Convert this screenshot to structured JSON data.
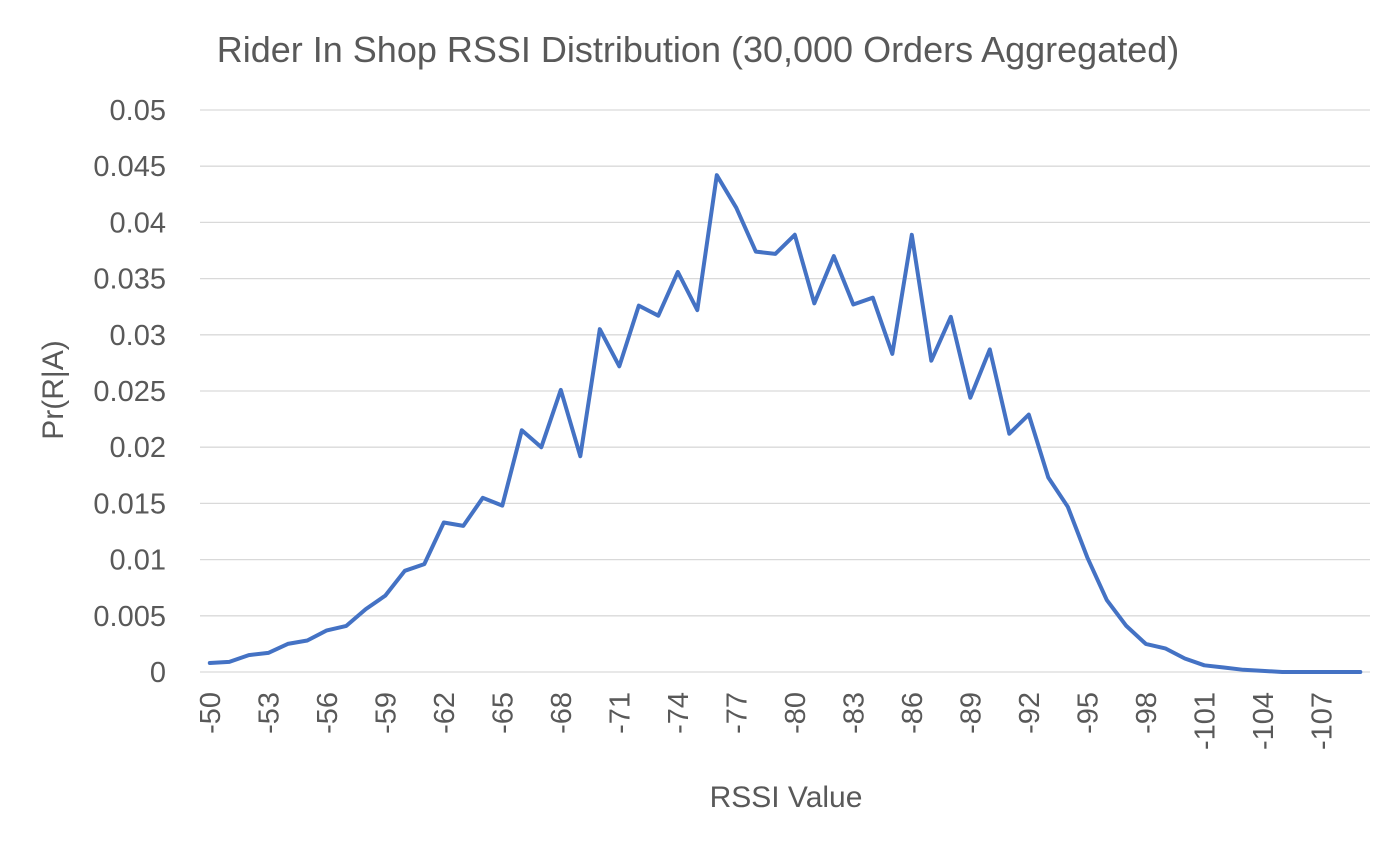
{
  "chart_data": {
    "type": "line",
    "title": "Rider In Shop RSSI Distribution (30,000 Orders Aggregated)",
    "xlabel": "RSSI Value",
    "ylabel": "Pr(R|A)",
    "ylim": [
      0,
      0.05
    ],
    "y_ticks": [
      "0",
      "0.005",
      "0.01",
      "0.015",
      "0.02",
      "0.025",
      "0.03",
      "0.035",
      "0.04",
      "0.045",
      "0.05"
    ],
    "x_tick_labels": [
      "-50",
      "-53",
      "-56",
      "-59",
      "-62",
      "-65",
      "-68",
      "-71",
      "-74",
      "-77",
      "-80",
      "-83",
      "-86",
      "-89",
      "-92",
      "-95",
      "-98",
      "-101",
      "-104",
      "-107"
    ],
    "x": [
      -50,
      -51,
      -52,
      -53,
      -54,
      -55,
      -56,
      -57,
      -58,
      -59,
      -60,
      -61,
      -62,
      -63,
      -64,
      -65,
      -66,
      -67,
      -68,
      -69,
      -70,
      -71,
      -72,
      -73,
      -74,
      -75,
      -76,
      -77,
      -78,
      -79,
      -80,
      -81,
      -82,
      -83,
      -84,
      -85,
      -86,
      -87,
      -88,
      -89,
      -90,
      -91,
      -92,
      -93,
      -94,
      -95,
      -96,
      -97,
      -98,
      -99,
      -100,
      -101,
      -102,
      -103,
      -104,
      -105,
      -106,
      -107,
      -108,
      -109
    ],
    "series": [
      {
        "values": [
          0.0008,
          0.0009,
          0.0015,
          0.0017,
          0.0025,
          0.0028,
          0.0037,
          0.0041,
          0.0056,
          0.0068,
          0.009,
          0.0096,
          0.0133,
          0.013,
          0.0155,
          0.0148,
          0.0215,
          0.02,
          0.0251,
          0.0192,
          0.0305,
          0.0272,
          0.0326,
          0.0317,
          0.0356,
          0.0322,
          0.0442,
          0.0413,
          0.0374,
          0.0372,
          0.0389,
          0.0328,
          0.037,
          0.0327,
          0.0333,
          0.0283,
          0.0389,
          0.0277,
          0.0316,
          0.0244,
          0.0287,
          0.0212,
          0.0229,
          0.0173,
          0.0147,
          0.0102,
          0.0064,
          0.0041,
          0.0025,
          0.0021,
          0.0012,
          0.0006,
          0.0004,
          0.0002,
          0.0001,
          0.0,
          0.0,
          0.0,
          0.0,
          0.0
        ],
        "color": "#4472c4"
      }
    ],
    "grid": true,
    "legend": "none"
  }
}
